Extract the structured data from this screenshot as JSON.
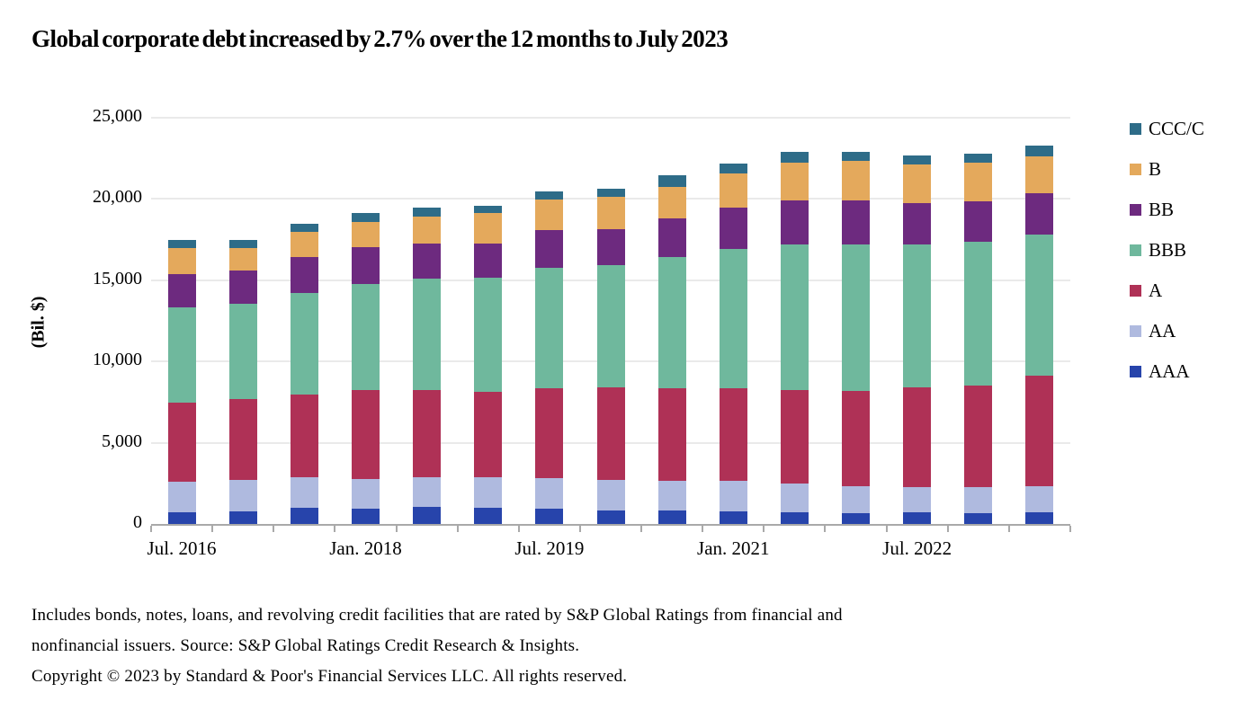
{
  "chart_data": {
    "type": "bar",
    "stacked": true,
    "title": "Global corporate debt increased by 2.7% over the 12 months to July 2023",
    "ylabel": "(Bil. $)",
    "ylim": [
      0,
      25000
    ],
    "grid": "horizontal",
    "legend_position": "right",
    "legend_order_top_to_bottom": [
      "CCC/C",
      "B",
      "BB",
      "BBB",
      "A",
      "AA",
      "AAA"
    ],
    "y_ticks": [
      {
        "value": 25000,
        "label": "25,000"
      },
      {
        "value": 20000,
        "label": "20,000"
      },
      {
        "value": 15000,
        "label": "15,000"
      },
      {
        "value": 10000,
        "label": "10,000"
      },
      {
        "value": 5000,
        "label": "5,000"
      },
      {
        "value": 0,
        "label": "0"
      }
    ],
    "categories": [
      "Jul. 2016",
      "Jan. 2017",
      "Jul. 2017",
      "Jan. 2018",
      "Jul. 2018",
      "Jan. 2019",
      "Jul. 2019",
      "Jan. 2020",
      "Jul. 2020",
      "Jan. 2021",
      "Jul. 2021",
      "Jan. 2022",
      "Jul. 2022",
      "Jan. 2023",
      "Jul. 2023"
    ],
    "x_tick_labels_shown": [
      {
        "index": 0,
        "label": "Jul. 2016"
      },
      {
        "index": 3,
        "label": "Jan. 2018"
      },
      {
        "index": 6,
        "label": "Jul. 2019"
      },
      {
        "index": 9,
        "label": "Jan. 2021"
      },
      {
        "index": 12,
        "label": "Jul. 2022"
      }
    ],
    "series": [
      {
        "name": "AAA",
        "color": "#2744AB",
        "values": [
          700,
          780,
          1000,
          960,
          1030,
          980,
          920,
          850,
          850,
          780,
          730,
          690,
          700,
          680,
          700
        ]
      },
      {
        "name": "AA",
        "color": "#AFBADF",
        "values": [
          1920,
          1940,
          1900,
          1810,
          1850,
          1910,
          1890,
          1870,
          1790,
          1860,
          1760,
          1620,
          1570,
          1570,
          1620
        ]
      },
      {
        "name": "A",
        "color": "#AF3156",
        "values": [
          4860,
          4950,
          5040,
          5450,
          5350,
          5240,
          5570,
          5690,
          5710,
          5710,
          5730,
          5860,
          6130,
          6250,
          6820
        ]
      },
      {
        "name": "BBB",
        "color": "#6FB89D",
        "values": [
          5850,
          5860,
          6250,
          6560,
          6860,
          7020,
          7390,
          7520,
          8090,
          8560,
          8960,
          9020,
          8780,
          8870,
          8690
        ]
      },
      {
        "name": "BB",
        "color": "#6D2A7F",
        "values": [
          2070,
          2080,
          2250,
          2260,
          2160,
          2110,
          2310,
          2220,
          2370,
          2550,
          2730,
          2720,
          2550,
          2490,
          2550
        ]
      },
      {
        "name": "B",
        "color": "#E4A95C",
        "values": [
          1580,
          1390,
          1520,
          1540,
          1680,
          1870,
          1890,
          2000,
          1950,
          2120,
          2340,
          2460,
          2380,
          2400,
          2220
        ]
      },
      {
        "name": "CCC/C",
        "color": "#2E6C88",
        "values": [
          500,
          500,
          520,
          550,
          520,
          460,
          500,
          510,
          730,
          630,
          650,
          550,
          570,
          520,
          680
        ]
      }
    ],
    "totals": [
      17480,
      17500,
      18480,
      19130,
      19450,
      19590,
      20470,
      20660,
      21490,
      22210,
      22900,
      22920,
      22680,
      22780,
      23280
    ]
  },
  "footer": {
    "lines": [
      "Includes bonds, notes, loans, and revolving credit facilities that are rated by S&P Global Ratings from financial and",
      "nonfinancial issuers. Source: S&P Global Ratings Credit Research & Insights.",
      "Copyright © 2023 by Standard & Poor's Financial Services LLC. All rights reserved."
    ]
  },
  "colors": {
    "background": "#ffffff",
    "gridline": "#eaeaea",
    "axis": "#a9a9a9",
    "text": "#000000"
  }
}
